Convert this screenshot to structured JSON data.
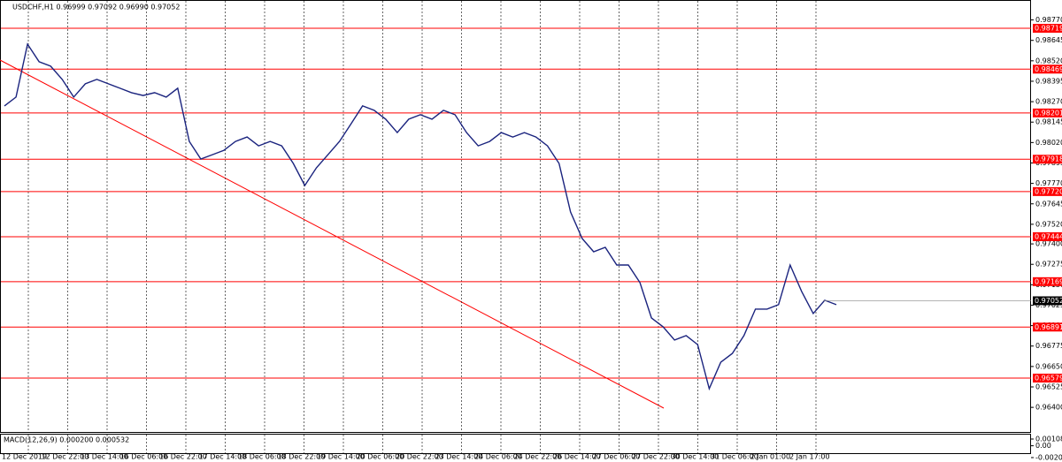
{
  "chart_data": {
    "type": "line",
    "title": "USDCHF,H1 0.96999 0.97092 0.96990 0.97052",
    "x_labels": [
      "12 Dec 2019",
      "12 Dec 22:00",
      "13 Dec 14:00",
      "16 Dec 06:00",
      "16 Dec 22:00",
      "17 Dec 14:00",
      "18 Dec 06:00",
      "18 Dec 22:00",
      "19 Dec 14:00",
      "20 Dec 06:00",
      "20 Dec 22:00",
      "23 Dec 14:00",
      "24 Dec 06:00",
      "24 Dec 22:00",
      "26 Dec 14:00",
      "27 Dec 06:00",
      "27 Dec 22:00",
      "30 Dec 14:00",
      "31 Dec 06:00",
      "2 Jan 01:00",
      "2 Jan 17:00"
    ],
    "series": [
      {
        "color": "#1a237e",
        "values": [
          0.98244,
          0.98298,
          0.98622,
          0.98514,
          0.98487,
          0.98406,
          0.98298,
          0.98379,
          0.98406,
          0.98379,
          0.98352,
          0.98325,
          0.98308,
          0.98325,
          0.98298,
          0.98352,
          0.98027,
          0.97919,
          0.97946,
          0.97973,
          0.98027,
          0.98054,
          0.98,
          0.98027,
          0.98,
          0.97892,
          0.97757,
          0.97865,
          0.97946,
          0.98027,
          0.98135,
          0.98244,
          0.98217,
          0.98163,
          0.98081,
          0.98163,
          0.9819,
          0.98163,
          0.98217,
          0.9819,
          0.98081,
          0.98,
          0.98027,
          0.98081,
          0.98054,
          0.98081,
          0.98054,
          0.98,
          0.97892,
          0.97595,
          0.97433,
          0.97352,
          0.97379,
          0.97271,
          0.97271,
          0.97163,
          0.96947,
          0.96893,
          0.96812,
          0.96839,
          0.96784,
          0.96514,
          0.96676,
          0.9673,
          0.96839,
          0.97001,
          0.97001,
          0.97028,
          0.97271,
          0.97109,
          0.96974,
          0.97055,
          0.97028
        ]
      }
    ],
    "ylim": [
      0.96244,
      0.98892
    ],
    "yticks": [
      {
        "value": 0.9877,
        "label": "0.98770"
      },
      {
        "value": 0.98645,
        "label": "0.98645"
      },
      {
        "value": 0.9852,
        "label": "0.98520"
      },
      {
        "value": 0.98395,
        "label": "0.98395"
      },
      {
        "value": 0.9827,
        "label": "0.98270"
      },
      {
        "value": 0.98145,
        "label": "0.98145"
      },
      {
        "value": 0.9802,
        "label": "0.98020"
      },
      {
        "value": 0.97895,
        "label": "0.97895"
      },
      {
        "value": 0.9777,
        "label": "0.97770"
      },
      {
        "value": 0.97645,
        "label": "0.97645"
      },
      {
        "value": 0.9752,
        "label": "0.97520"
      },
      {
        "value": 0.974,
        "label": "0.97400"
      },
      {
        "value": 0.97275,
        "label": "0.97275"
      },
      {
        "value": 0.9715,
        "label": "0.97150"
      },
      {
        "value": 0.97025,
        "label": "0.97025"
      },
      {
        "value": 0.969,
        "label": "0.96900"
      },
      {
        "value": 0.96775,
        "label": "0.96775"
      },
      {
        "value": 0.9665,
        "label": "0.96650"
      },
      {
        "value": 0.96525,
        "label": "0.96525"
      },
      {
        "value": 0.964,
        "label": "0.96400"
      }
    ],
    "levels": [
      0.98719,
      0.98469,
      0.98201,
      0.97918,
      {
        "value": 0.9772,
        "label": "0.97720"
      },
      0.97444,
      0.97169,
      0.96891,
      0.96579
    ],
    "level_color": "#ff0000",
    "current_price": 0.97052,
    "macd": {
      "title": "MACD(12,26,9) 0.000200 0.000532",
      "ylim": [
        -0.00204,
        0.00108
      ],
      "yticks": [
        0.001081,
        {
          "value": 0,
          "label": "0.00"
        },
        -0.002043
      ]
    }
  }
}
